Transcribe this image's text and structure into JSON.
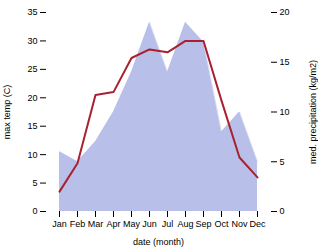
{
  "chart_data": {
    "type": "line",
    "categories": [
      "Jan",
      "Feb",
      "Mar",
      "Apr",
      "May",
      "Jun",
      "Jul",
      "Aug",
      "Sep",
      "Oct",
      "Nov",
      "Dec"
    ],
    "xlabel": "date (month)",
    "ylabel": "max temp (C)",
    "y2label": "med. precipitation (kg/m2)",
    "ylim": [
      0,
      35
    ],
    "yticks": [
      0,
      5,
      10,
      15,
      20,
      25,
      30,
      35
    ],
    "y2lim": [
      0,
      20
    ],
    "y2ticks": [
      0,
      5,
      10,
      15,
      20
    ],
    "series": [
      {
        "type": "area",
        "axis": "y2",
        "color": "#b8bfe8",
        "values": [
          6,
          5,
          7,
          10,
          14,
          19,
          14,
          19,
          17,
          8,
          10,
          5
        ]
      },
      {
        "type": "line",
        "color": "#aa2030",
        "values": [
          3.5,
          8.5,
          20.5,
          21.0,
          27.0,
          28.5,
          28.0,
          30.0,
          30.0,
          19.5,
          9.5,
          6.0
        ]
      }
    ]
  }
}
